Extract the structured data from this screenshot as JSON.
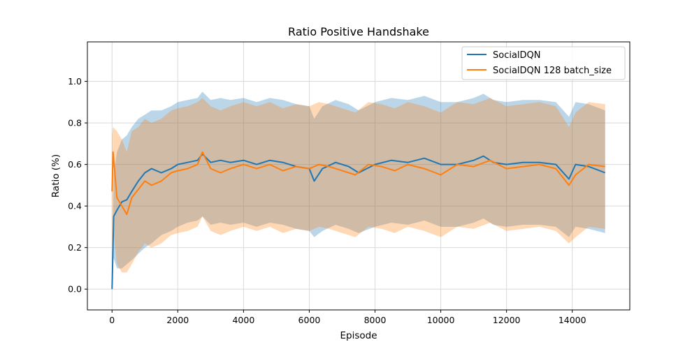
{
  "chart_data": {
    "type": "line",
    "title": "Ratio Positive Handshake",
    "xlabel": "Episode",
    "ylabel": "Ratio (%)",
    "xlim": [
      -750,
      15750
    ],
    "ylim": [
      -0.1,
      1.19
    ],
    "xticks": [
      0,
      2000,
      4000,
      6000,
      8000,
      10000,
      12000,
      14000
    ],
    "yticks": [
      0.0,
      0.2,
      0.4,
      0.6,
      0.8,
      1.0
    ],
    "xtick_labels": [
      "0",
      "2000",
      "4000",
      "6000",
      "8000",
      "10000",
      "12000",
      "14000"
    ],
    "ytick_labels": [
      "0.0",
      "0.2",
      "0.4",
      "0.6",
      "0.8",
      "1.0"
    ],
    "grid": true,
    "legend_position": "top-right",
    "series": [
      {
        "name": "SocialDQN",
        "color": "#1f77b4",
        "fill_alpha": 0.3,
        "x": [
          0,
          50,
          150,
          300,
          450,
          600,
          800,
          1000,
          1200,
          1500,
          1800,
          2000,
          2300,
          2600,
          2750,
          3000,
          3300,
          3600,
          4000,
          4400,
          4800,
          5200,
          5600,
          6000,
          6150,
          6400,
          6800,
          7200,
          7500,
          8000,
          8500,
          9000,
          9500,
          10000,
          10500,
          11000,
          11300,
          11600,
          12000,
          12500,
          13000,
          13500,
          13900,
          14100,
          14500,
          15000
        ],
        "values": [
          0.0,
          0.35,
          0.38,
          0.42,
          0.43,
          0.47,
          0.52,
          0.56,
          0.58,
          0.56,
          0.58,
          0.6,
          0.61,
          0.62,
          0.65,
          0.61,
          0.62,
          0.61,
          0.62,
          0.6,
          0.62,
          0.61,
          0.59,
          0.58,
          0.52,
          0.58,
          0.61,
          0.59,
          0.56,
          0.6,
          0.62,
          0.61,
          0.63,
          0.6,
          0.6,
          0.62,
          0.64,
          0.61,
          0.6,
          0.61,
          0.61,
          0.6,
          0.53,
          0.6,
          0.59,
          0.56
        ],
        "lower": [
          0.0,
          0.15,
          0.1,
          0.1,
          0.12,
          0.14,
          0.17,
          0.2,
          0.22,
          0.26,
          0.28,
          0.3,
          0.32,
          0.33,
          0.35,
          0.31,
          0.32,
          0.31,
          0.32,
          0.3,
          0.32,
          0.31,
          0.29,
          0.28,
          0.25,
          0.28,
          0.31,
          0.29,
          0.27,
          0.3,
          0.32,
          0.31,
          0.33,
          0.3,
          0.3,
          0.32,
          0.34,
          0.31,
          0.3,
          0.31,
          0.31,
          0.3,
          0.25,
          0.3,
          0.29,
          0.27
        ],
        "upper": [
          0.0,
          0.55,
          0.66,
          0.72,
          0.74,
          0.78,
          0.82,
          0.84,
          0.86,
          0.86,
          0.88,
          0.9,
          0.91,
          0.92,
          0.95,
          0.91,
          0.92,
          0.91,
          0.92,
          0.9,
          0.92,
          0.91,
          0.89,
          0.88,
          0.82,
          0.88,
          0.91,
          0.89,
          0.86,
          0.9,
          0.92,
          0.91,
          0.93,
          0.9,
          0.9,
          0.92,
          0.94,
          0.91,
          0.9,
          0.91,
          0.91,
          0.9,
          0.83,
          0.9,
          0.89,
          0.86
        ]
      },
      {
        "name": "SocialDQN 128 batch_size",
        "color": "#ff7f0e",
        "fill_alpha": 0.3,
        "x": [
          0,
          30,
          150,
          300,
          450,
          600,
          800,
          1000,
          1200,
          1500,
          1800,
          2000,
          2300,
          2600,
          2750,
          3000,
          3300,
          3600,
          4000,
          4400,
          4800,
          5200,
          5600,
          6000,
          6300,
          6600,
          7000,
          7400,
          7800,
          8200,
          8600,
          9000,
          9500,
          10000,
          10500,
          11000,
          11500,
          12000,
          12500,
          13000,
          13500,
          13900,
          14100,
          14500,
          15000
        ],
        "values": [
          0.47,
          0.66,
          0.44,
          0.4,
          0.36,
          0.44,
          0.48,
          0.52,
          0.5,
          0.52,
          0.56,
          0.57,
          0.58,
          0.6,
          0.66,
          0.58,
          0.56,
          0.58,
          0.6,
          0.58,
          0.6,
          0.57,
          0.59,
          0.58,
          0.6,
          0.59,
          0.57,
          0.55,
          0.6,
          0.59,
          0.57,
          0.6,
          0.58,
          0.55,
          0.6,
          0.59,
          0.62,
          0.58,
          0.59,
          0.6,
          0.58,
          0.5,
          0.55,
          0.6,
          0.59
        ],
        "lower": [
          0.2,
          0.3,
          0.12,
          0.08,
          0.08,
          0.12,
          0.18,
          0.22,
          0.2,
          0.22,
          0.26,
          0.27,
          0.28,
          0.3,
          0.35,
          0.28,
          0.26,
          0.28,
          0.3,
          0.28,
          0.3,
          0.27,
          0.29,
          0.28,
          0.3,
          0.29,
          0.27,
          0.25,
          0.3,
          0.29,
          0.27,
          0.3,
          0.28,
          0.25,
          0.3,
          0.29,
          0.32,
          0.28,
          0.29,
          0.3,
          0.28,
          0.22,
          0.25,
          0.3,
          0.29
        ],
        "upper": [
          0.74,
          0.78,
          0.76,
          0.72,
          0.66,
          0.76,
          0.78,
          0.82,
          0.8,
          0.82,
          0.86,
          0.87,
          0.88,
          0.9,
          0.92,
          0.88,
          0.86,
          0.88,
          0.9,
          0.88,
          0.9,
          0.87,
          0.89,
          0.88,
          0.9,
          0.89,
          0.87,
          0.85,
          0.9,
          0.89,
          0.87,
          0.9,
          0.88,
          0.85,
          0.9,
          0.89,
          0.92,
          0.88,
          0.89,
          0.9,
          0.88,
          0.78,
          0.85,
          0.9,
          0.89
        ]
      }
    ]
  }
}
